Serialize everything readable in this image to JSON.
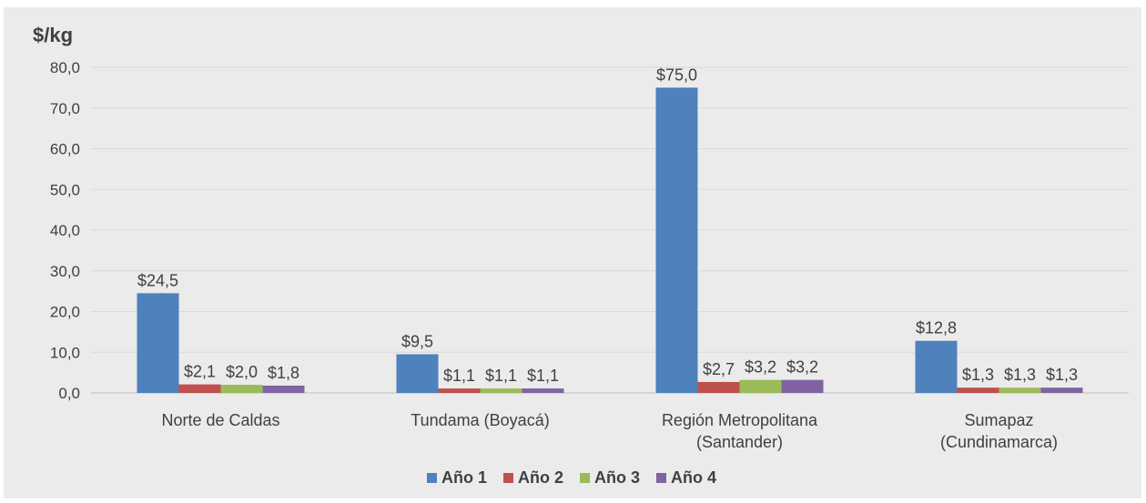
{
  "chart_data": {
    "type": "bar",
    "unit_label": "$/kg",
    "categories": [
      [
        "Norte de Caldas"
      ],
      [
        "Tundama (Boyacá)"
      ],
      [
        "Región Metropolitana",
        "(Santander)"
      ],
      [
        "Sumapaz",
        "(Cundinamarca)"
      ]
    ],
    "series": [
      {
        "name": "Año 1",
        "color": "#4f81bd",
        "values": [
          24.5,
          9.5,
          75.0,
          12.8
        ],
        "labels": [
          "$24,5",
          "$9,5",
          "$75,0",
          "$12,8"
        ]
      },
      {
        "name": "Año 2",
        "color": "#c0504d",
        "values": [
          2.1,
          1.1,
          2.7,
          1.3
        ],
        "labels": [
          "$2,1",
          "$1,1",
          "$2,7",
          "$1,3"
        ]
      },
      {
        "name": "Año 3",
        "color": "#9bbb59",
        "values": [
          2.0,
          1.1,
          3.2,
          1.3
        ],
        "labels": [
          "$2,0",
          "$1,1",
          "$3,2",
          "$1,3"
        ]
      },
      {
        "name": "Año 4",
        "color": "#8064a2",
        "values": [
          1.8,
          1.1,
          3.2,
          1.3
        ],
        "labels": [
          "$1,8",
          "$1,1",
          "$3,2",
          "$1,3"
        ]
      }
    ],
    "y_ticks": [
      "0,0",
      "10,0",
      "20,0",
      "30,0",
      "40,0",
      "50,0",
      "60,0",
      "70,0",
      "80,0"
    ],
    "ylim": [
      0,
      80
    ],
    "grid": true,
    "legend_position": "bottom"
  }
}
